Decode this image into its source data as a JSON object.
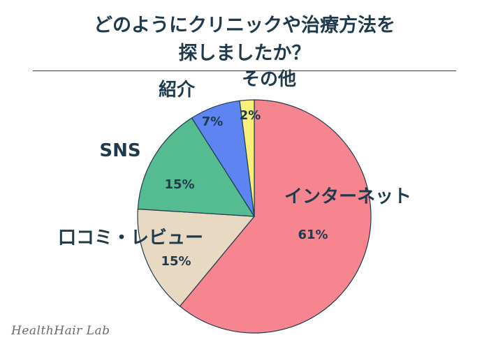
{
  "title_line1": "どのようにクリニックや治療方法を",
  "title_line2": "探しましたか？",
  "watermark": "HealthHair Lab",
  "chart_data": {
    "type": "pie",
    "start_angle_deg": 0,
    "direction": "clockwise",
    "slices": [
      {
        "label": "インターネット",
        "value": 61,
        "value_label": "61%",
        "color": "#f6858f"
      },
      {
        "label": "口コミ・レビュー",
        "value": 15,
        "value_label": "15%",
        "color": "#e8d9c3"
      },
      {
        "label": "SNS",
        "value": 15,
        "value_label": "15%",
        "color": "#55bc92"
      },
      {
        "label": "紹介",
        "value": 7,
        "value_label": "7%",
        "color": "#5e84f2"
      },
      {
        "label": "その他",
        "value": 2,
        "value_label": "2%",
        "color": "#f8f07a"
      }
    ]
  }
}
